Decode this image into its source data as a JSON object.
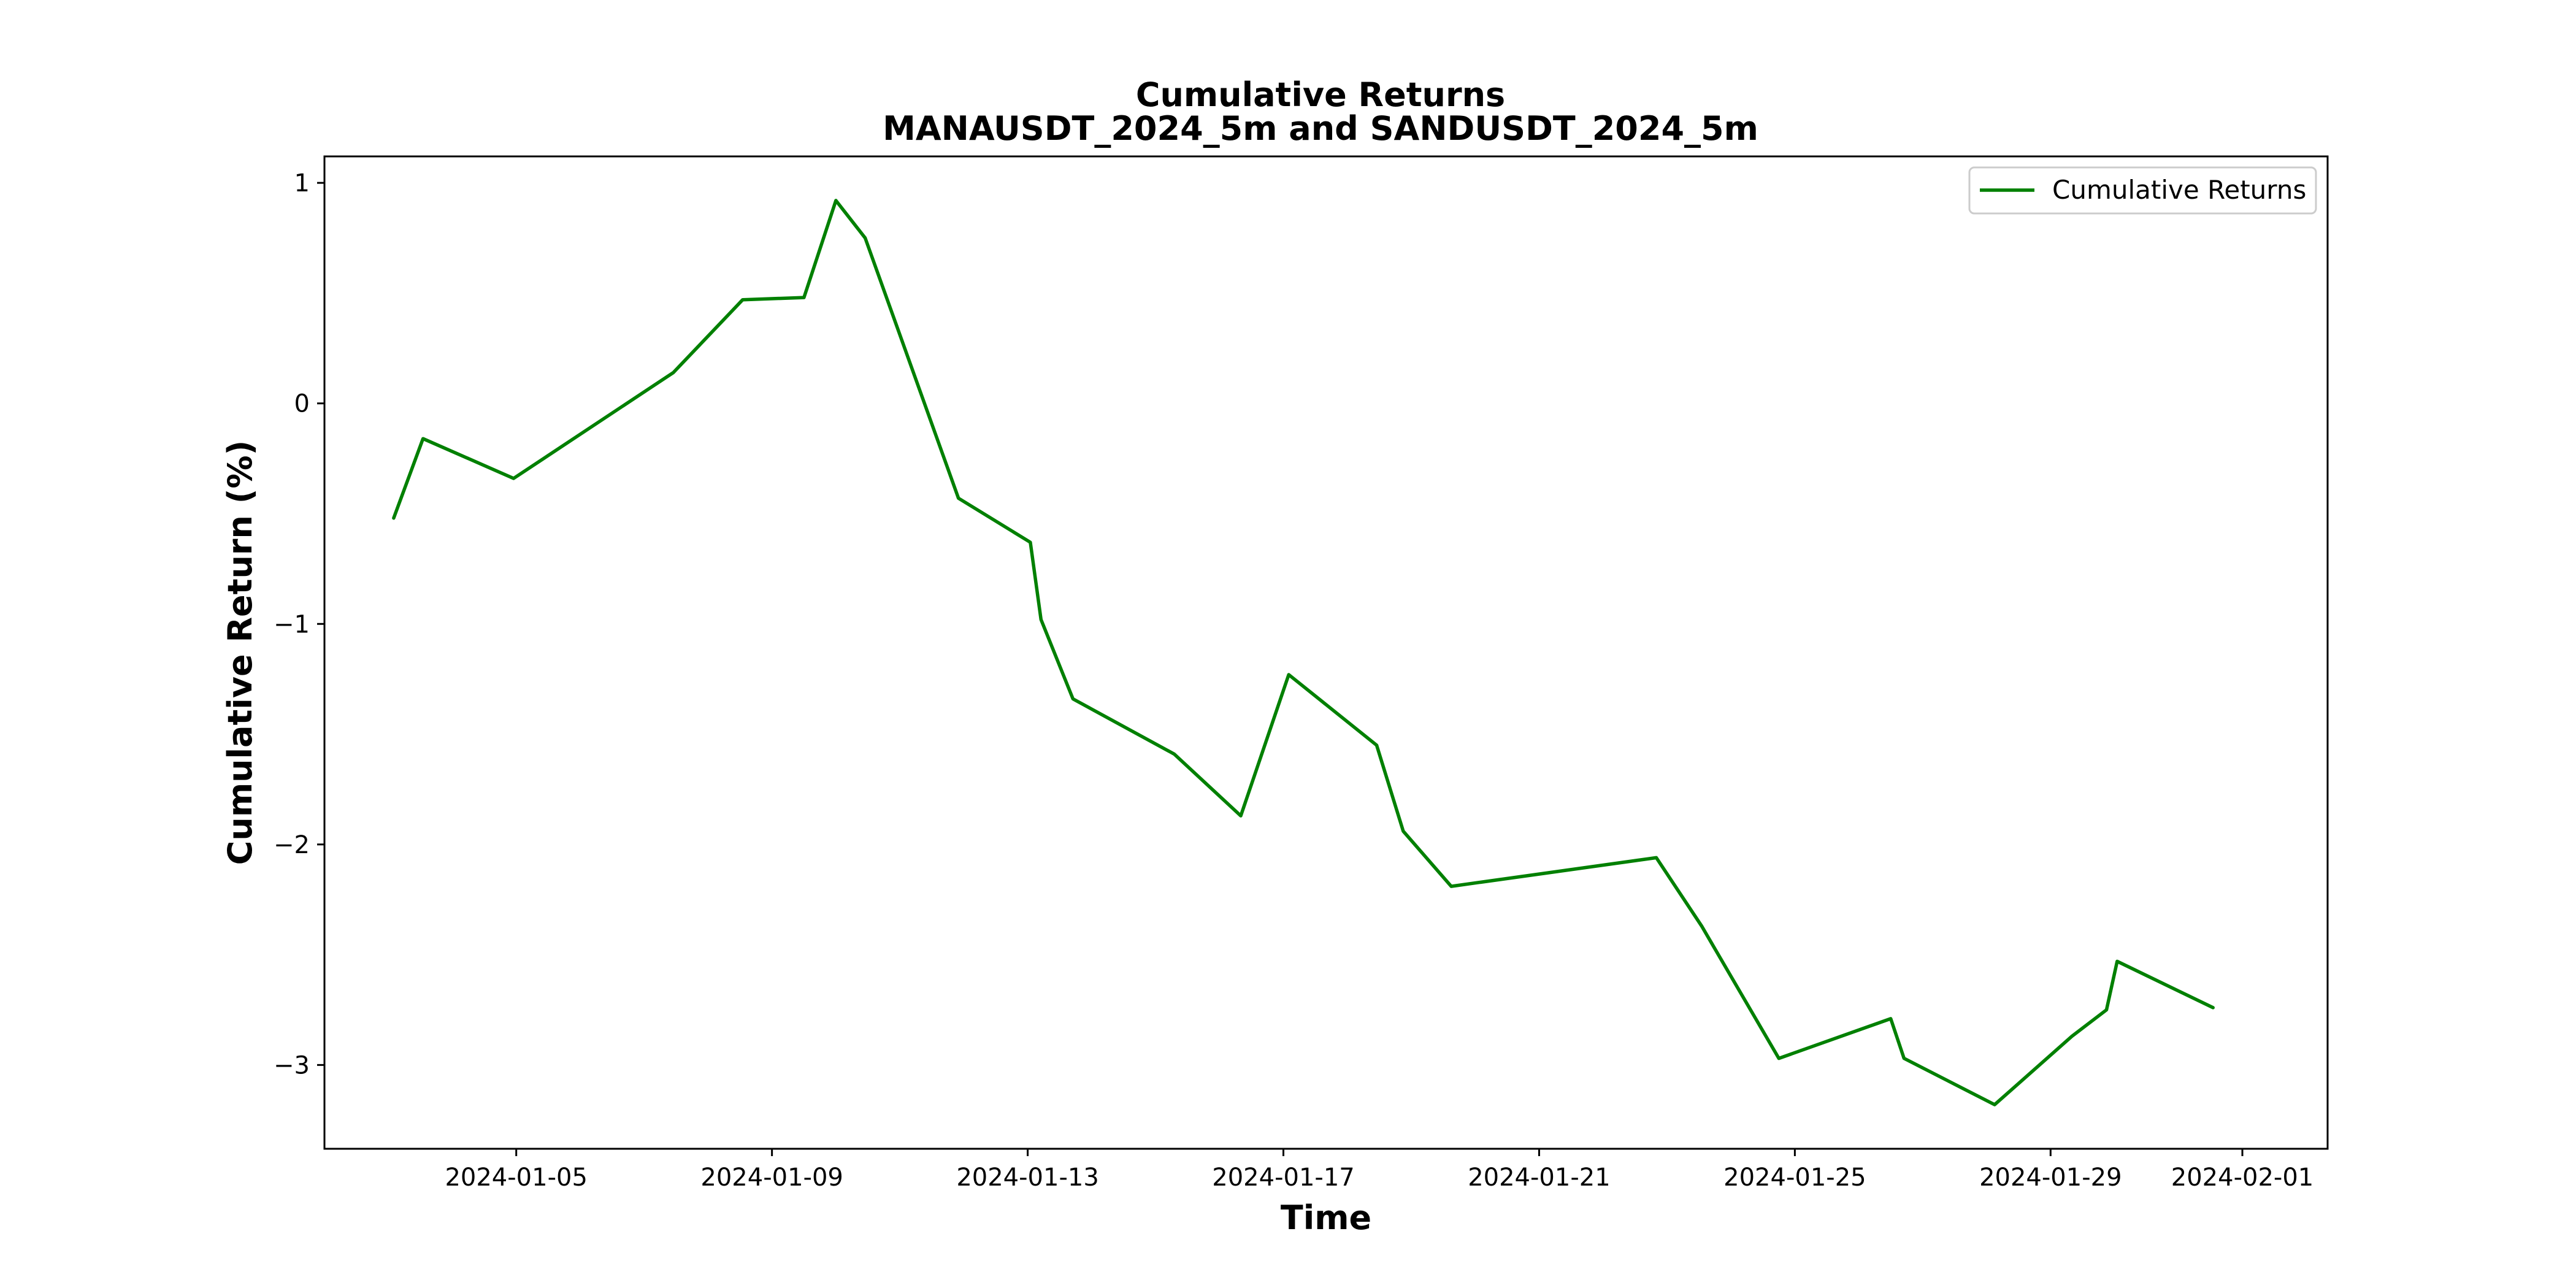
{
  "chart_data": {
    "type": "line",
    "title": "Cumulative Returns",
    "subtitle": "MANAUSDT_2024_5m and SANDUSDT_2024_5m",
    "xlabel": "Time",
    "ylabel": "Cumulative Return (%)",
    "xlim": [
      "2024-01-02T00:00",
      "2024-02-02T08:00"
    ],
    "ylim": [
      -3.38,
      1.12
    ],
    "x_ticks": [
      {
        "value": "2024-01-05",
        "label": "2024-01-05"
      },
      {
        "value": "2024-01-09",
        "label": "2024-01-09"
      },
      {
        "value": "2024-01-13",
        "label": "2024-01-13"
      },
      {
        "value": "2024-01-17",
        "label": "2024-01-17"
      },
      {
        "value": "2024-01-21",
        "label": "2024-01-21"
      },
      {
        "value": "2024-01-25",
        "label": "2024-01-25"
      },
      {
        "value": "2024-01-29",
        "label": "2024-01-29"
      },
      {
        "value": "2024-02-01",
        "label": "2024-02-01"
      }
    ],
    "y_ticks": [
      {
        "value": 1,
        "label": "1"
      },
      {
        "value": 0,
        "label": "0"
      },
      {
        "value": -1,
        "label": "−1"
      },
      {
        "value": -2,
        "label": "−2"
      },
      {
        "value": -3,
        "label": "−3"
      }
    ],
    "grid": false,
    "legend_position": "top-right",
    "series": [
      {
        "name": "Cumulative Returns",
        "color": "#008000",
        "points": [
          {
            "x": "2024-01-03T02:00",
            "y": -0.52
          },
          {
            "x": "2024-01-03T13:00",
            "y": -0.16
          },
          {
            "x": "2024-01-04T23:00",
            "y": -0.34
          },
          {
            "x": "2024-01-07T11:00",
            "y": 0.14
          },
          {
            "x": "2024-01-08T13:00",
            "y": 0.47
          },
          {
            "x": "2024-01-09T12:00",
            "y": 0.48
          },
          {
            "x": "2024-01-10T00:00",
            "y": 0.92
          },
          {
            "x": "2024-01-10T11:00",
            "y": 0.75
          },
          {
            "x": "2024-01-11T22:00",
            "y": -0.43
          },
          {
            "x": "2024-01-13T01:00",
            "y": -0.63
          },
          {
            "x": "2024-01-13T05:00",
            "y": -0.98
          },
          {
            "x": "2024-01-13T17:00",
            "y": -1.34
          },
          {
            "x": "2024-01-15T07:00",
            "y": -1.59
          },
          {
            "x": "2024-01-16T08:00",
            "y": -1.87
          },
          {
            "x": "2024-01-17T02:00",
            "y": -1.23
          },
          {
            "x": "2024-01-18T11:00",
            "y": -1.55
          },
          {
            "x": "2024-01-18T21:00",
            "y": -1.94
          },
          {
            "x": "2024-01-19T15:00",
            "y": -2.19
          },
          {
            "x": "2024-01-22T20:00",
            "y": -2.06
          },
          {
            "x": "2024-01-23T13:00",
            "y": -2.37
          },
          {
            "x": "2024-01-24T18:00",
            "y": -2.97
          },
          {
            "x": "2024-01-26T12:00",
            "y": -2.79
          },
          {
            "x": "2024-01-26T17:00",
            "y": -2.97
          },
          {
            "x": "2024-01-28T03:00",
            "y": -3.18
          },
          {
            "x": "2024-01-29T08:00",
            "y": -2.87
          },
          {
            "x": "2024-01-29T21:00",
            "y": -2.75
          },
          {
            "x": "2024-01-30T01:00",
            "y": -2.53
          },
          {
            "x": "2024-01-31T13:00",
            "y": -2.74
          }
        ]
      }
    ]
  }
}
